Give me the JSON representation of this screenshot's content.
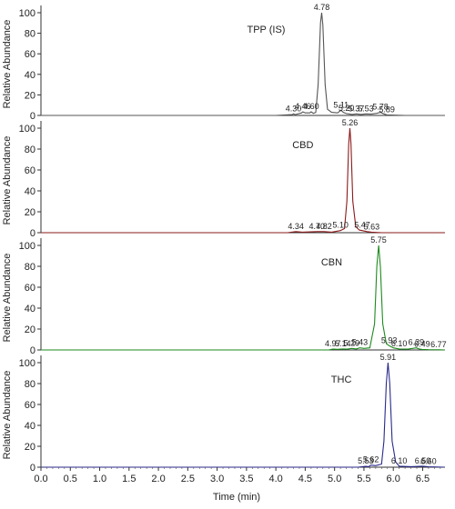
{
  "chart_data": {
    "type": "line",
    "xlabel": "Time (min)",
    "xlim": [
      0.0,
      6.88
    ],
    "x_ticks": [
      "0.0",
      "0.5",
      "1.0",
      "1.5",
      "2.0",
      "2.5",
      "3.0",
      "3.5",
      "4.0",
      "4.5",
      "5.0",
      "5.5",
      "6.0",
      "6.5"
    ],
    "panels": [
      {
        "title": "TPP (IS)",
        "ylabel": "Relative Abundance",
        "ylim": [
          0,
          100
        ],
        "y_ticks": [
          "0",
          "20",
          "40",
          "60",
          "80",
          "100"
        ],
        "color": "#555555",
        "points": [
          [
            0.0,
            0
          ],
          [
            4.0,
            0
          ],
          [
            4.28,
            0.8
          ],
          [
            4.3,
            1.5
          ],
          [
            4.33,
            0.8
          ],
          [
            4.44,
            2.5
          ],
          [
            4.46,
            3.5
          ],
          [
            4.5,
            2.5
          ],
          [
            4.58,
            2.5
          ],
          [
            4.6,
            3.5
          ],
          [
            4.64,
            2
          ],
          [
            4.68,
            3
          ],
          [
            4.72,
            30
          ],
          [
            4.76,
            90
          ],
          [
            4.78,
            100
          ],
          [
            4.8,
            88
          ],
          [
            4.84,
            30
          ],
          [
            4.88,
            6
          ],
          [
            4.95,
            3
          ],
          [
            5.05,
            2.5
          ],
          [
            5.11,
            5
          ],
          [
            5.15,
            3
          ],
          [
            5.2,
            1.8
          ],
          [
            5.3,
            1
          ],
          [
            5.37,
            1.5
          ],
          [
            5.45,
            1
          ],
          [
            5.53,
            1.5
          ],
          [
            5.62,
            1.2
          ],
          [
            5.72,
            2
          ],
          [
            5.78,
            3
          ],
          [
            5.84,
            1.5
          ],
          [
            5.89,
            0.5
          ],
          [
            6.2,
            0
          ],
          [
            6.88,
            0
          ]
        ],
        "peak_labels": [
          {
            "x": 4.78,
            "y": 100,
            "text": "4.78"
          },
          {
            "x": 4.3,
            "y": 1.5,
            "text": "4.30"
          },
          {
            "x": 4.46,
            "y": 3.5,
            "text": "4.46"
          },
          {
            "x": 4.6,
            "y": 3.5,
            "text": "4.60"
          },
          {
            "x": 5.11,
            "y": 5,
            "text": "5.11"
          },
          {
            "x": 5.2,
            "y": 1.8,
            "text": "5.20"
          },
          {
            "x": 5.37,
            "y": 1.5,
            "text": "5.37"
          },
          {
            "x": 5.53,
            "y": 1.5,
            "text": "5.53"
          },
          {
            "x": 5.78,
            "y": 3,
            "text": "5.78"
          },
          {
            "x": 5.89,
            "y": 0.5,
            "text": "5.89"
          }
        ]
      },
      {
        "title": "CBD",
        "ylabel": "Relative Abundance",
        "ylim": [
          0,
          100
        ],
        "y_ticks": [
          "0",
          "20",
          "40",
          "60",
          "80",
          "100"
        ],
        "color": "#8b1a1a",
        "points": [
          [
            0.0,
            0
          ],
          [
            4.2,
            0
          ],
          [
            4.34,
            1
          ],
          [
            4.45,
            0.5
          ],
          [
            4.7,
            1
          ],
          [
            4.82,
            1
          ],
          [
            4.95,
            0.5
          ],
          [
            5.1,
            2
          ],
          [
            5.17,
            4
          ],
          [
            5.21,
            30
          ],
          [
            5.24,
            85
          ],
          [
            5.26,
            100
          ],
          [
            5.28,
            85
          ],
          [
            5.31,
            30
          ],
          [
            5.36,
            6
          ],
          [
            5.42,
            2.5
          ],
          [
            5.47,
            2
          ],
          [
            5.55,
            1
          ],
          [
            5.63,
            0.5
          ],
          [
            5.8,
            0
          ],
          [
            6.88,
            0
          ]
        ],
        "peak_labels": [
          {
            "x": 5.26,
            "y": 100,
            "text": "5.26"
          },
          {
            "x": 4.34,
            "y": 1,
            "text": "4.34"
          },
          {
            "x": 4.7,
            "y": 1,
            "text": "4.70"
          },
          {
            "x": 4.82,
            "y": 1,
            "text": "4.82"
          },
          {
            "x": 5.1,
            "y": 2,
            "text": "5.10"
          },
          {
            "x": 5.47,
            "y": 2,
            "text": "5.47"
          },
          {
            "x": 5.63,
            "y": 0.5,
            "text": "5.63"
          }
        ]
      },
      {
        "title": "CBN",
        "ylabel": "Relative Abundance",
        "ylim": [
          0,
          100
        ],
        "y_ticks": [
          "0",
          "20",
          "40",
          "60",
          "80",
          "100"
        ],
        "color": "#1e8a1e",
        "points": [
          [
            0.0,
            0
          ],
          [
            4.9,
            0
          ],
          [
            4.97,
            0.8
          ],
          [
            5.05,
            0.6
          ],
          [
            5.14,
            1
          ],
          [
            5.22,
            0.8
          ],
          [
            5.29,
            1.5
          ],
          [
            5.37,
            1
          ],
          [
            5.43,
            2
          ],
          [
            5.5,
            1.5
          ],
          [
            5.6,
            2
          ],
          [
            5.68,
            25
          ],
          [
            5.72,
            80
          ],
          [
            5.75,
            100
          ],
          [
            5.78,
            80
          ],
          [
            5.82,
            25
          ],
          [
            5.88,
            6
          ],
          [
            5.93,
            4
          ],
          [
            6.0,
            2
          ],
          [
            6.1,
            1
          ],
          [
            6.25,
            0.8
          ],
          [
            6.39,
            2
          ],
          [
            6.45,
            0.8
          ],
          [
            6.49,
            0.5
          ],
          [
            6.6,
            0.3
          ],
          [
            6.77,
            0.2
          ],
          [
            6.88,
            0
          ]
        ],
        "peak_labels": [
          {
            "x": 5.75,
            "y": 100,
            "text": "5.75"
          },
          {
            "x": 4.97,
            "y": 0.8,
            "text": "4.97"
          },
          {
            "x": 5.14,
            "y": 1,
            "text": "5.14"
          },
          {
            "x": 5.29,
            "y": 1.5,
            "text": "5.29"
          },
          {
            "x": 5.43,
            "y": 2,
            "text": "5.43"
          },
          {
            "x": 5.93,
            "y": 4,
            "text": "5.93"
          },
          {
            "x": 6.1,
            "y": 1,
            "text": "6.10"
          },
          {
            "x": 6.39,
            "y": 2,
            "text": "6.39"
          },
          {
            "x": 6.49,
            "y": 0.5,
            "text": "6.49"
          },
          {
            "x": 6.77,
            "y": 0.2,
            "text": "6.77"
          }
        ]
      },
      {
        "title": "THC",
        "ylabel": "Relative Abundance",
        "ylim": [
          0,
          100
        ],
        "y_ticks": [
          "0",
          "20",
          "40",
          "60",
          "80",
          "100"
        ],
        "color": "#2a2a8c",
        "points": [
          [
            0.0,
            0
          ],
          [
            5.4,
            0
          ],
          [
            5.53,
            0.8
          ],
          [
            5.58,
            0.5
          ],
          [
            5.62,
            2
          ],
          [
            5.7,
            1.5
          ],
          [
            5.8,
            3
          ],
          [
            5.84,
            25
          ],
          [
            5.88,
            80
          ],
          [
            5.91,
            100
          ],
          [
            5.94,
            80
          ],
          [
            5.98,
            25
          ],
          [
            6.04,
            5
          ],
          [
            6.1,
            1
          ],
          [
            6.3,
            0.5
          ],
          [
            6.5,
            1
          ],
          [
            6.6,
            0.4
          ],
          [
            6.88,
            0
          ]
        ],
        "peak_labels": [
          {
            "x": 5.91,
            "y": 100,
            "text": "5.91"
          },
          {
            "x": 5.53,
            "y": 0.8,
            "text": "5.53"
          },
          {
            "x": 5.62,
            "y": 2,
            "text": "5.62"
          },
          {
            "x": 6.1,
            "y": 1,
            "text": "6.10"
          },
          {
            "x": 6.5,
            "y": 1,
            "text": "6.50"
          },
          {
            "x": 6.6,
            "y": 0.4,
            "text": "6.60"
          }
        ]
      }
    ]
  }
}
